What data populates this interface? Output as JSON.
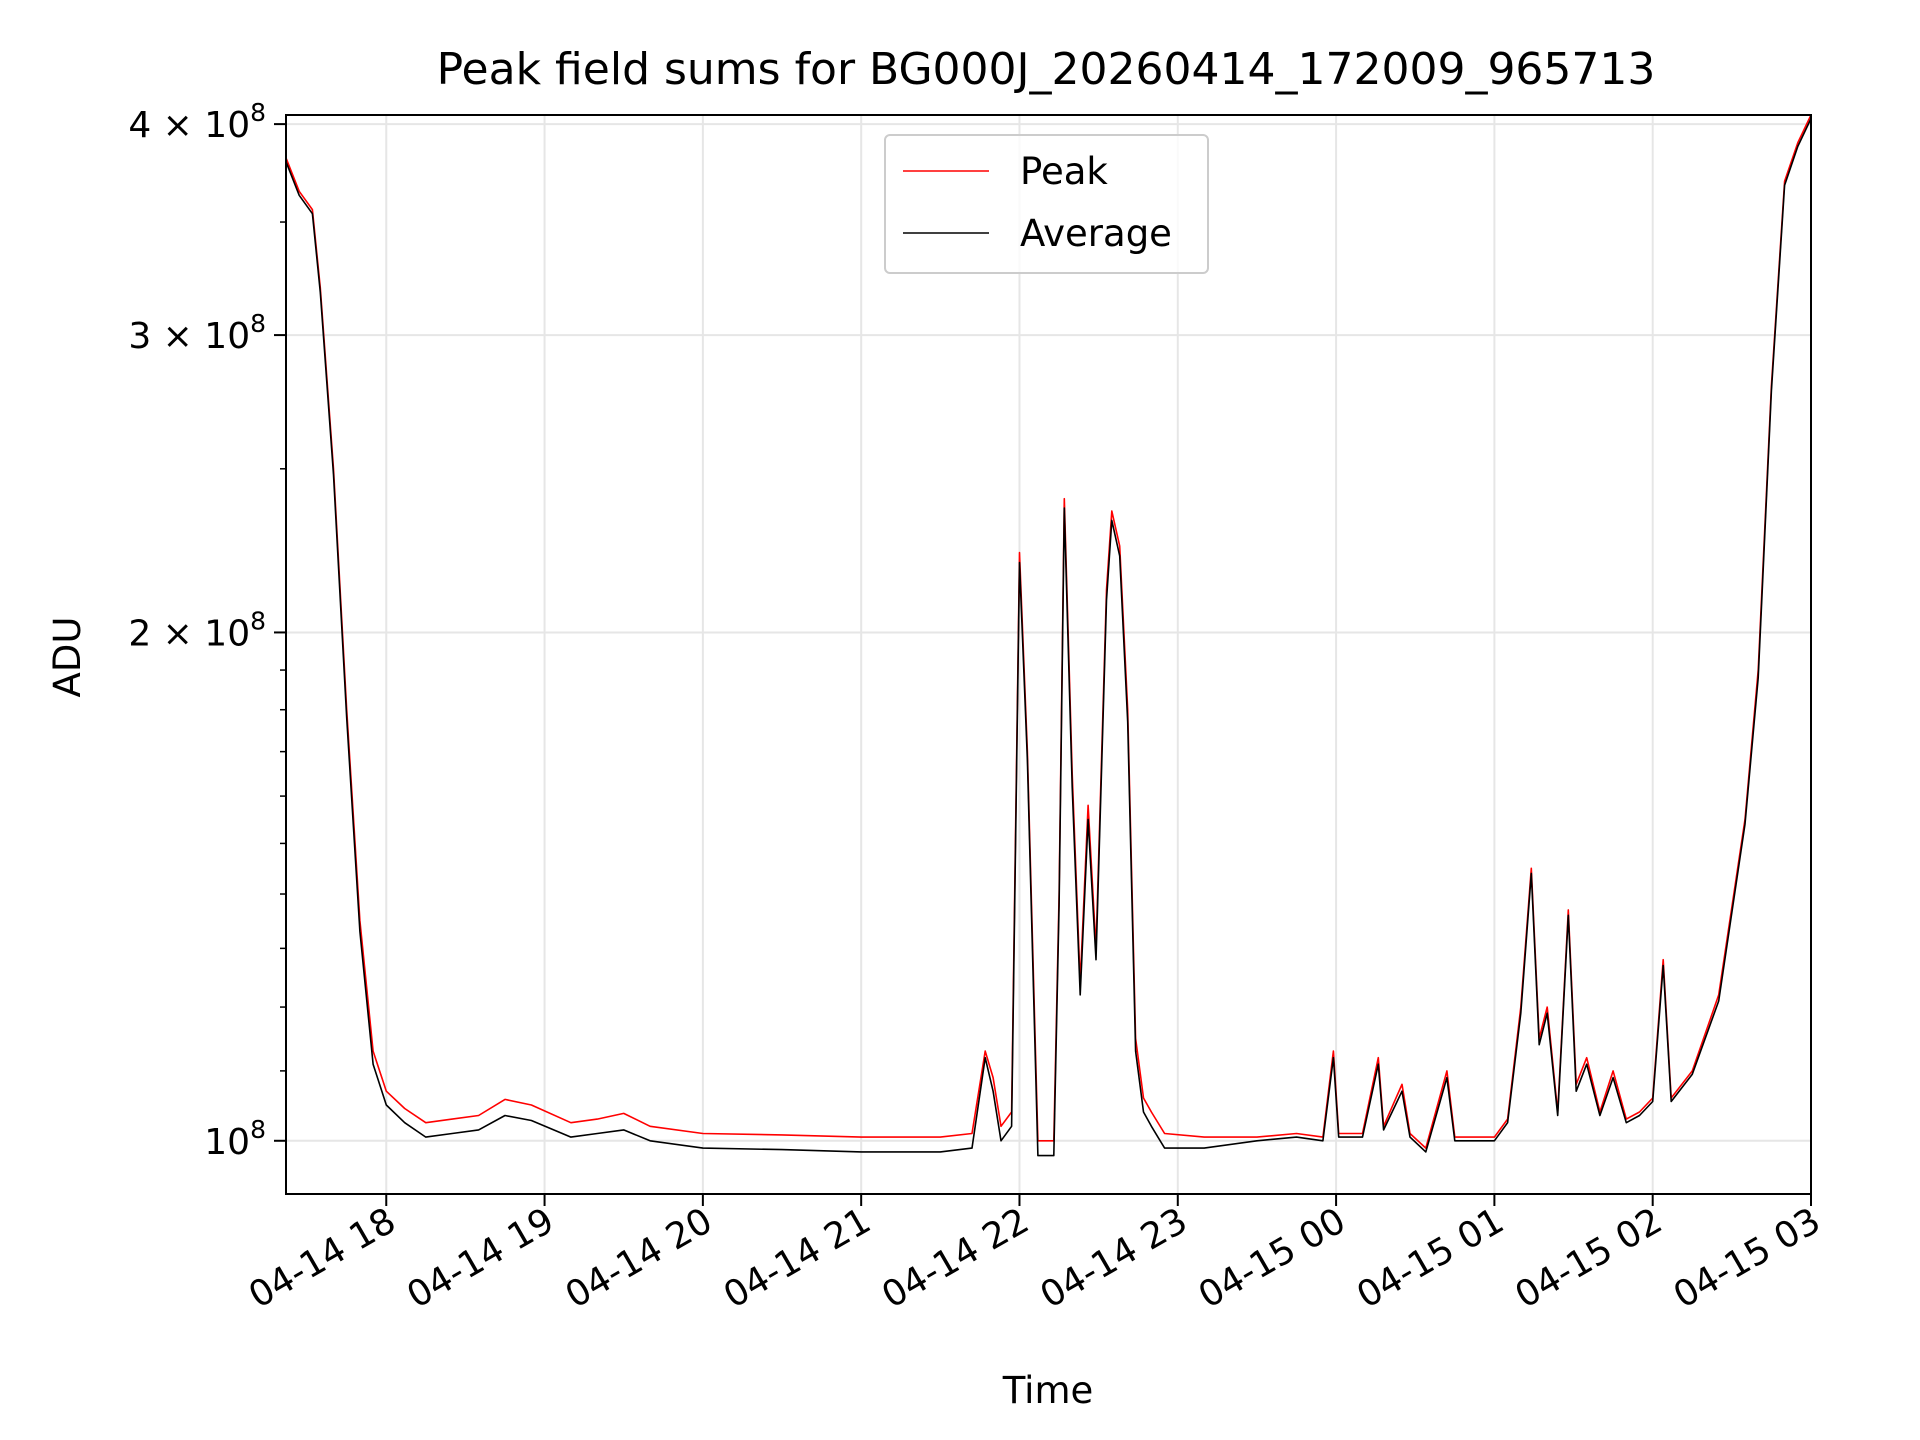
{
  "chart_data": {
    "type": "line",
    "title": "Peak field sums for BG000J_20260414_172009_965713",
    "xlabel": "Time",
    "ylabel": "ADU",
    "xlim": [
      "2026-04-14 17:22",
      "2026-04-15 03:00"
    ],
    "ylim": [
      93000000,
      405000000
    ],
    "y_scale": "log",
    "grid": true,
    "legend_position": "upper center",
    "x_ticks": [
      {
        "value": "2026-04-14 18:00",
        "label": "04-14 18"
      },
      {
        "value": "2026-04-14 19:00",
        "label": "04-14 19"
      },
      {
        "value": "2026-04-14 20:00",
        "label": "04-14 20"
      },
      {
        "value": "2026-04-14 21:00",
        "label": "04-14 21"
      },
      {
        "value": "2026-04-14 22:00",
        "label": "04-14 22"
      },
      {
        "value": "2026-04-14 23:00",
        "label": "04-14 23"
      },
      {
        "value": "2026-04-15 00:00",
        "label": "04-15 00"
      },
      {
        "value": "2026-04-15 01:00",
        "label": "04-15 01"
      },
      {
        "value": "2026-04-15 02:00",
        "label": "04-15 02"
      },
      {
        "value": "2026-04-15 03:00",
        "label": "04-15 03"
      }
    ],
    "y_ticks": [
      {
        "value": 100000000,
        "base": "10",
        "exp": "8",
        "coef": ""
      },
      {
        "value": 200000000,
        "base": "2 × 10",
        "exp": "8",
        "coef": "2"
      },
      {
        "value": 300000000,
        "base": "3 × 10",
        "exp": "8",
        "coef": "3"
      },
      {
        "value": 400000000,
        "base": "4 × 10",
        "exp": "8",
        "coef": "4"
      }
    ],
    "series": [
      {
        "name": "Peak",
        "color": "#ff0000",
        "points": [
          [
            "2026-04-14 17:22",
            382000000
          ],
          [
            "2026-04-14 17:27",
            365000000
          ],
          [
            "2026-04-14 17:32",
            356000000
          ],
          [
            "2026-04-14 17:35",
            320000000
          ],
          [
            "2026-04-14 17:40",
            250000000
          ],
          [
            "2026-04-14 17:45",
            180000000
          ],
          [
            "2026-04-14 17:50",
            135000000
          ],
          [
            "2026-04-14 17:55",
            113000000
          ],
          [
            "2026-04-14 18:00",
            107000000
          ],
          [
            "2026-04-14 18:07",
            104500000
          ],
          [
            "2026-04-14 18:15",
            102500000
          ],
          [
            "2026-04-14 18:25",
            103000000
          ],
          [
            "2026-04-14 18:35",
            103500000
          ],
          [
            "2026-04-14 18:45",
            105800000
          ],
          [
            "2026-04-14 18:55",
            105000000
          ],
          [
            "2026-04-14 19:10",
            102500000
          ],
          [
            "2026-04-14 19:20",
            103000000
          ],
          [
            "2026-04-14 19:30",
            103800000
          ],
          [
            "2026-04-14 19:40",
            102000000
          ],
          [
            "2026-04-14 20:00",
            101000000
          ],
          [
            "2026-04-14 20:30",
            100800000
          ],
          [
            "2026-04-14 21:00",
            100500000
          ],
          [
            "2026-04-14 21:30",
            100500000
          ],
          [
            "2026-04-14 21:42",
            101000000
          ],
          [
            "2026-04-14 21:47",
            113000000
          ],
          [
            "2026-04-14 21:50",
            109000000
          ],
          [
            "2026-04-14 21:53",
            102000000
          ],
          [
            "2026-04-14 21:57",
            104000000
          ],
          [
            "2026-04-14 22:00",
            223000000
          ],
          [
            "2026-04-14 22:03",
            170000000
          ],
          [
            "2026-04-14 22:07",
            100000000
          ],
          [
            "2026-04-14 22:13",
            100000000
          ],
          [
            "2026-04-14 22:15",
            140000000
          ],
          [
            "2026-04-14 22:17",
            240000000
          ],
          [
            "2026-04-14 22:20",
            165000000
          ],
          [
            "2026-04-14 22:23",
            124000000
          ],
          [
            "2026-04-14 22:26",
            158000000
          ],
          [
            "2026-04-14 22:29",
            130000000
          ],
          [
            "2026-04-14 22:33",
            212000000
          ],
          [
            "2026-04-14 22:35",
            236000000
          ],
          [
            "2026-04-14 22:38",
            225000000
          ],
          [
            "2026-04-14 22:41",
            180000000
          ],
          [
            "2026-04-14 22:44",
            115000000
          ],
          [
            "2026-04-14 22:47",
            106000000
          ],
          [
            "2026-04-14 22:50",
            104000000
          ],
          [
            "2026-04-14 22:55",
            101000000
          ],
          [
            "2026-04-14 23:10",
            100500000
          ],
          [
            "2026-04-14 23:30",
            100500000
          ],
          [
            "2026-04-14 23:45",
            101000000
          ],
          [
            "2026-04-14 23:55",
            100500000
          ],
          [
            "2026-04-14 23:59",
            113000000
          ],
          [
            "2026-04-15 00:01",
            101000000
          ],
          [
            "2026-04-15 00:10",
            101000000
          ],
          [
            "2026-04-15 00:16",
            112000000
          ],
          [
            "2026-04-15 00:18",
            102000000
          ],
          [
            "2026-04-15 00:25",
            108000000
          ],
          [
            "2026-04-15 00:28",
            101000000
          ],
          [
            "2026-04-15 00:34",
            99000000
          ],
          [
            "2026-04-15 00:42",
            110000000
          ],
          [
            "2026-04-15 00:45",
            100500000
          ],
          [
            "2026-04-15 01:00",
            100500000
          ],
          [
            "2026-04-15 01:05",
            103000000
          ],
          [
            "2026-04-15 01:10",
            120000000
          ],
          [
            "2026-04-15 01:14",
            145000000
          ],
          [
            "2026-04-15 01:17",
            115000000
          ],
          [
            "2026-04-15 01:20",
            120000000
          ],
          [
            "2026-04-15 01:24",
            104000000
          ],
          [
            "2026-04-15 01:28",
            137000000
          ],
          [
            "2026-04-15 01:31",
            108000000
          ],
          [
            "2026-04-15 01:35",
            112000000
          ],
          [
            "2026-04-15 01:40",
            104000000
          ],
          [
            "2026-04-15 01:45",
            110000000
          ],
          [
            "2026-04-15 01:50",
            103000000
          ],
          [
            "2026-04-15 01:55",
            104000000
          ],
          [
            "2026-04-15 02:00",
            106000000
          ],
          [
            "2026-04-15 02:04",
            128000000
          ],
          [
            "2026-04-15 02:07",
            106000000
          ],
          [
            "2026-04-15 02:15",
            110000000
          ],
          [
            "2026-04-15 02:25",
            122000000
          ],
          [
            "2026-04-15 02:35",
            155000000
          ],
          [
            "2026-04-15 02:40",
            190000000
          ],
          [
            "2026-04-15 02:45",
            280000000
          ],
          [
            "2026-04-15 02:50",
            370000000
          ],
          [
            "2026-04-15 02:55",
            390000000
          ],
          [
            "2026-04-15 03:00",
            405000000
          ]
        ]
      },
      {
        "name": "Average",
        "color": "#000000",
        "points": [
          [
            "2026-04-14 17:22",
            380000000
          ],
          [
            "2026-04-14 17:27",
            363000000
          ],
          [
            "2026-04-14 17:32",
            354000000
          ],
          [
            "2026-04-14 17:35",
            318000000
          ],
          [
            "2026-04-14 17:40",
            248000000
          ],
          [
            "2026-04-14 17:45",
            178000000
          ],
          [
            "2026-04-14 17:50",
            133000000
          ],
          [
            "2026-04-14 17:55",
            111000000
          ],
          [
            "2026-04-14 18:00",
            105000000
          ],
          [
            "2026-04-14 18:07",
            102500000
          ],
          [
            "2026-04-14 18:15",
            100500000
          ],
          [
            "2026-04-14 18:25",
            101000000
          ],
          [
            "2026-04-14 18:35",
            101500000
          ],
          [
            "2026-04-14 18:45",
            103500000
          ],
          [
            "2026-04-14 18:55",
            102800000
          ],
          [
            "2026-04-14 19:10",
            100500000
          ],
          [
            "2026-04-14 19:20",
            101000000
          ],
          [
            "2026-04-14 19:30",
            101500000
          ],
          [
            "2026-04-14 19:40",
            100000000
          ],
          [
            "2026-04-14 20:00",
            99000000
          ],
          [
            "2026-04-14 20:30",
            98800000
          ],
          [
            "2026-04-14 21:00",
            98500000
          ],
          [
            "2026-04-14 21:30",
            98500000
          ],
          [
            "2026-04-14 21:42",
            99000000
          ],
          [
            "2026-04-14 21:47",
            112000000
          ],
          [
            "2026-04-14 21:50",
            107000000
          ],
          [
            "2026-04-14 21:53",
            100000000
          ],
          [
            "2026-04-14 21:57",
            102000000
          ],
          [
            "2026-04-14 22:00",
            220000000
          ],
          [
            "2026-04-14 22:03",
            168000000
          ],
          [
            "2026-04-14 22:07",
            98000000
          ],
          [
            "2026-04-14 22:13",
            98000000
          ],
          [
            "2026-04-14 22:15",
            138000000
          ],
          [
            "2026-04-14 22:17",
            237000000
          ],
          [
            "2026-04-14 22:20",
            162000000
          ],
          [
            "2026-04-14 22:23",
            122000000
          ],
          [
            "2026-04-14 22:26",
            155000000
          ],
          [
            "2026-04-14 22:29",
            128000000
          ],
          [
            "2026-04-14 22:33",
            209000000
          ],
          [
            "2026-04-14 22:35",
            233000000
          ],
          [
            "2026-04-14 22:38",
            222000000
          ],
          [
            "2026-04-14 22:41",
            177000000
          ],
          [
            "2026-04-14 22:44",
            113000000
          ],
          [
            "2026-04-14 22:47",
            104000000
          ],
          [
            "2026-04-14 22:50",
            102000000
          ],
          [
            "2026-04-14 22:55",
            99000000
          ],
          [
            "2026-04-14 23:10",
            99000000
          ],
          [
            "2026-04-14 23:30",
            100000000
          ],
          [
            "2026-04-14 23:45",
            100500000
          ],
          [
            "2026-04-14 23:55",
            100000000
          ],
          [
            "2026-04-14 23:59",
            112000000
          ],
          [
            "2026-04-15 00:01",
            100500000
          ],
          [
            "2026-04-15 00:10",
            100500000
          ],
          [
            "2026-04-15 00:16",
            111000000
          ],
          [
            "2026-04-15 00:18",
            101500000
          ],
          [
            "2026-04-15 00:25",
            107000000
          ],
          [
            "2026-04-15 00:28",
            100500000
          ],
          [
            "2026-04-15 00:34",
            98500000
          ],
          [
            "2026-04-15 00:42",
            109000000
          ],
          [
            "2026-04-15 00:45",
            100000000
          ],
          [
            "2026-04-15 01:00",
            100000000
          ],
          [
            "2026-04-15 01:05",
            102500000
          ],
          [
            "2026-04-15 01:10",
            119000000
          ],
          [
            "2026-04-15 01:14",
            144000000
          ],
          [
            "2026-04-15 01:17",
            114000000
          ],
          [
            "2026-04-15 01:20",
            119000000
          ],
          [
            "2026-04-15 01:24",
            103500000
          ],
          [
            "2026-04-15 01:28",
            136000000
          ],
          [
            "2026-04-15 01:31",
            107000000
          ],
          [
            "2026-04-15 01:35",
            111000000
          ],
          [
            "2026-04-15 01:40",
            103500000
          ],
          [
            "2026-04-15 01:45",
            109000000
          ],
          [
            "2026-04-15 01:50",
            102500000
          ],
          [
            "2026-04-15 01:55",
            103500000
          ],
          [
            "2026-04-15 02:00",
            105500000
          ],
          [
            "2026-04-15 02:04",
            127000000
          ],
          [
            "2026-04-15 02:07",
            105500000
          ],
          [
            "2026-04-15 02:15",
            109500000
          ],
          [
            "2026-04-15 02:25",
            121000000
          ],
          [
            "2026-04-15 02:35",
            154000000
          ],
          [
            "2026-04-15 02:40",
            188000000
          ],
          [
            "2026-04-15 02:45",
            278000000
          ],
          [
            "2026-04-15 02:50",
            368000000
          ],
          [
            "2026-04-15 02:55",
            388000000
          ],
          [
            "2026-04-15 03:00",
            403000000
          ]
        ]
      }
    ]
  }
}
